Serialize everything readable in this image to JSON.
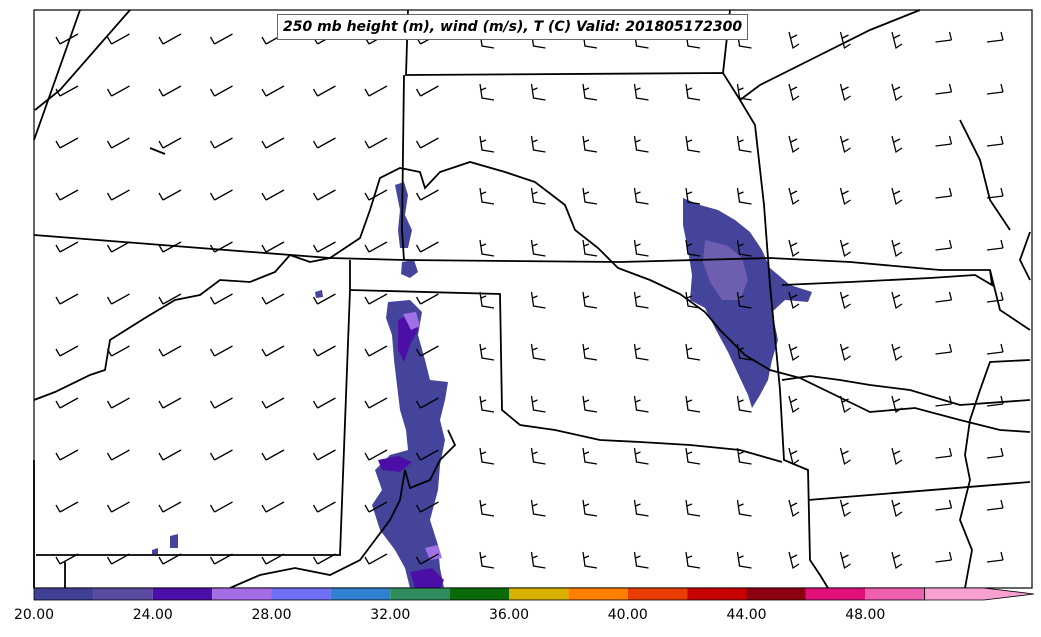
{
  "title": "250 mb height (m), wind (m/s), T (C) Valid: 201805172300",
  "colorbar": {
    "tick_labels": [
      "20.00",
      "24.00",
      "28.00",
      "32.00",
      "36.00",
      "40.00",
      "44.00",
      "48.00"
    ],
    "colors": [
      "#3f3f94",
      "#5a4aa0",
      "#4b0fa8",
      "#a66ce6",
      "#6f6ff6",
      "#2f80cf",
      "#2f8c5c",
      "#0a6a0a",
      "#d8b000",
      "#ff7f00",
      "#e83c00",
      "#c80000",
      "#8c0010",
      "#e0107a",
      "#f060b0",
      "#f8a0d0"
    ]
  }
}
